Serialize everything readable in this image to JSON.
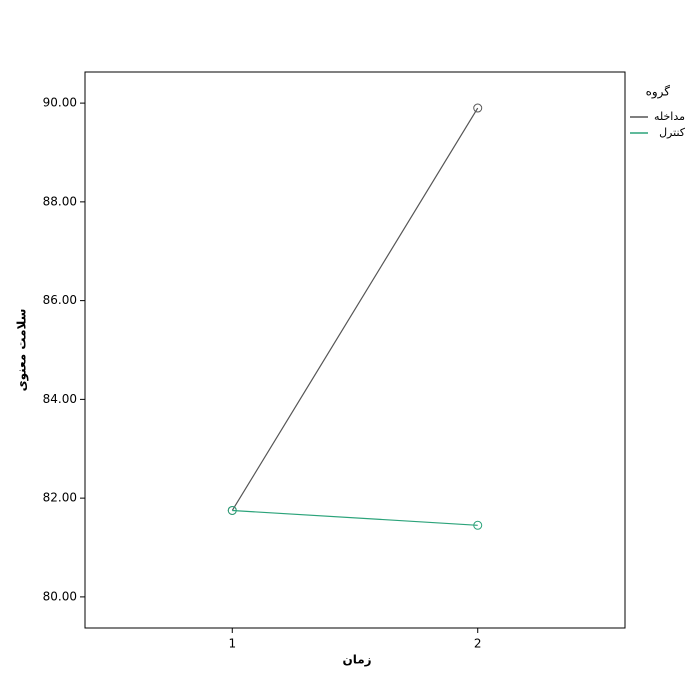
{
  "chart_data": {
    "type": "line",
    "x": [
      1,
      2
    ],
    "xlim": [
      0.4,
      2.6
    ],
    "xticks": [
      1,
      2
    ],
    "ylim": [
      79.37,
      90.63
    ],
    "yticks": [
      {
        "value": 80,
        "label": "80.00"
      },
      {
        "value": 82,
        "label": "82.00"
      },
      {
        "value": 84,
        "label": "84.00"
      },
      {
        "value": 86,
        "label": "86.00"
      },
      {
        "value": 88,
        "label": "88.00"
      },
      {
        "value": 90,
        "label": "90.00"
      }
    ],
    "xlabel": "زمان",
    "ylabel": "سلامت معنوی",
    "legend_title": "گروه",
    "series": [
      {
        "name": "مداخله",
        "color": "#555555",
        "values": [
          81.75,
          89.9
        ]
      },
      {
        "name": "کنترل",
        "color": "#2ba37a",
        "values": [
          81.75,
          81.45
        ]
      }
    ]
  }
}
